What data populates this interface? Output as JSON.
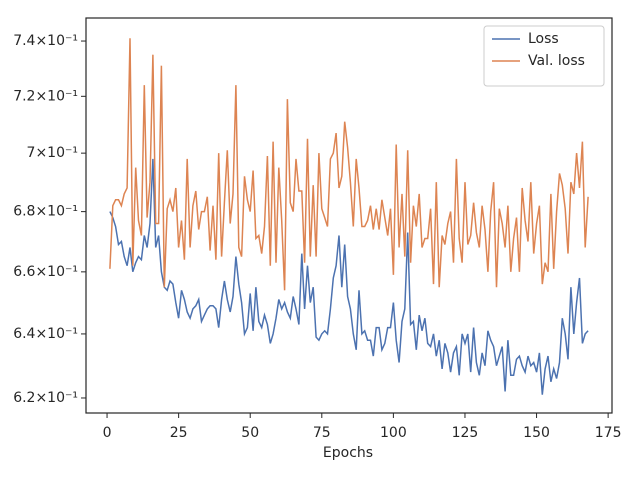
{
  "chart_data": {
    "type": "line",
    "xlabel": "Epochs",
    "yscale": "log",
    "legend": "upper right",
    "x": [
      1,
      2,
      3,
      4,
      5,
      6,
      7,
      8,
      9,
      10,
      11,
      12,
      13,
      14,
      15,
      16,
      17,
      18,
      19,
      20,
      21,
      22,
      23,
      24,
      25,
      26,
      27,
      28,
      29,
      30,
      31,
      32,
      33,
      34,
      35,
      36,
      37,
      38,
      39,
      40,
      41,
      42,
      43,
      44,
      45,
      46,
      47,
      48,
      49,
      50,
      51,
      52,
      53,
      54,
      55,
      56,
      57,
      58,
      59,
      60,
      61,
      62,
      63,
      64,
      65,
      66,
      67,
      68,
      69,
      70,
      71,
      72,
      73,
      74,
      75,
      76,
      77,
      78,
      79,
      80,
      81,
      82,
      83,
      84,
      85,
      86,
      87,
      88,
      89,
      90,
      91,
      92,
      93,
      94,
      95,
      96,
      97,
      98,
      99,
      100,
      101,
      102,
      103,
      104,
      105,
      106,
      107,
      108,
      109,
      110,
      111,
      112,
      113,
      114,
      115,
      116,
      117,
      118,
      119,
      120,
      121,
      122,
      123,
      124,
      125,
      126,
      127,
      128,
      129,
      130,
      131,
      132,
      133,
      134,
      135,
      136,
      137,
      138,
      139,
      140,
      141,
      142,
      143,
      144,
      145,
      146,
      147,
      148,
      149,
      150,
      151,
      152,
      153,
      154,
      155,
      156,
      157,
      158,
      159,
      160,
      161,
      162,
      163,
      164,
      165,
      166,
      167,
      168
    ],
    "series": [
      {
        "name": "Loss",
        "color": "#4c72b0",
        "values": [
          0.68,
          0.678,
          0.675,
          0.669,
          0.67,
          0.665,
          0.662,
          0.668,
          0.66,
          0.663,
          0.665,
          0.664,
          0.672,
          0.668,
          0.676,
          0.698,
          0.668,
          0.672,
          0.66,
          0.655,
          0.654,
          0.657,
          0.656,
          0.65,
          0.645,
          0.654,
          0.651,
          0.647,
          0.645,
          0.648,
          0.649,
          0.651,
          0.644,
          0.646,
          0.648,
          0.649,
          0.649,
          0.648,
          0.642,
          0.651,
          0.657,
          0.651,
          0.647,
          0.652,
          0.665,
          0.656,
          0.65,
          0.64,
          0.642,
          0.653,
          0.641,
          0.655,
          0.644,
          0.642,
          0.646,
          0.643,
          0.637,
          0.64,
          0.645,
          0.651,
          0.648,
          0.65,
          0.647,
          0.645,
          0.652,
          0.648,
          0.643,
          0.666,
          0.648,
          0.662,
          0.65,
          0.655,
          0.639,
          0.638,
          0.64,
          0.641,
          0.64,
          0.648,
          0.658,
          0.662,
          0.672,
          0.655,
          0.669,
          0.652,
          0.648,
          0.64,
          0.635,
          0.654,
          0.64,
          0.641,
          0.638,
          0.638,
          0.633,
          0.642,
          0.642,
          0.635,
          0.637,
          0.642,
          0.642,
          0.65,
          0.638,
          0.631,
          0.644,
          0.648,
          0.673,
          0.643,
          0.644,
          0.635,
          0.646,
          0.641,
          0.645,
          0.637,
          0.636,
          0.64,
          0.633,
          0.638,
          0.629,
          0.637,
          0.634,
          0.628,
          0.634,
          0.636,
          0.627,
          0.64,
          0.637,
          0.64,
          0.628,
          0.642,
          0.631,
          0.627,
          0.634,
          0.63,
          0.641,
          0.638,
          0.636,
          0.63,
          0.633,
          0.636,
          0.622,
          0.638,
          0.627,
          0.627,
          0.632,
          0.633,
          0.63,
          0.628,
          0.633,
          0.63,
          0.631,
          0.628,
          0.634,
          0.621,
          0.629,
          0.633,
          0.625,
          0.629,
          0.626,
          0.631,
          0.645,
          0.64,
          0.632,
          0.655,
          0.64,
          0.65,
          0.658,
          0.637,
          0.64,
          0.641
        ]
      },
      {
        "name": "Val. loss",
        "color": "#dd8452",
        "values": [
          0.661,
          0.682,
          0.684,
          0.684,
          0.682,
          0.686,
          0.688,
          0.741,
          0.662,
          0.695,
          0.677,
          0.672,
          0.724,
          0.678,
          0.69,
          0.735,
          0.676,
          0.676,
          0.731,
          0.655,
          0.681,
          0.684,
          0.68,
          0.688,
          0.668,
          0.677,
          0.664,
          0.698,
          0.668,
          0.682,
          0.687,
          0.674,
          0.68,
          0.68,
          0.685,
          0.667,
          0.682,
          0.664,
          0.7,
          0.665,
          0.683,
          0.701,
          0.676,
          0.686,
          0.724,
          0.668,
          0.665,
          0.692,
          0.684,
          0.68,
          0.694,
          0.671,
          0.672,
          0.666,
          0.675,
          0.699,
          0.662,
          0.704,
          0.663,
          0.695,
          0.677,
          0.654,
          0.719,
          0.683,
          0.68,
          0.698,
          0.687,
          0.687,
          0.663,
          0.705,
          0.665,
          0.689,
          0.665,
          0.7,
          0.681,
          0.678,
          0.675,
          0.698,
          0.7,
          0.707,
          0.688,
          0.692,
          0.711,
          0.702,
          0.69,
          0.675,
          0.698,
          0.688,
          0.675,
          0.675,
          0.677,
          0.682,
          0.674,
          0.681,
          0.674,
          0.684,
          0.678,
          0.672,
          0.681,
          0.659,
          0.703,
          0.668,
          0.686,
          0.665,
          0.701,
          0.663,
          0.682,
          0.675,
          0.686,
          0.668,
          0.671,
          0.671,
          0.681,
          0.656,
          0.69,
          0.655,
          0.672,
          0.669,
          0.676,
          0.68,
          0.663,
          0.698,
          0.671,
          0.663,
          0.69,
          0.669,
          0.672,
          0.683,
          0.673,
          0.668,
          0.682,
          0.674,
          0.66,
          0.68,
          0.69,
          0.655,
          0.681,
          0.676,
          0.668,
          0.682,
          0.66,
          0.671,
          0.678,
          0.66,
          0.688,
          0.677,
          0.67,
          0.69,
          0.666,
          0.676,
          0.682,
          0.656,
          0.663,
          0.66,
          0.686,
          0.661,
          0.68,
          0.693,
          0.689,
          0.681,
          0.666,
          0.69,
          0.686,
          0.7,
          0.688,
          0.704,
          0.668,
          0.685
        ]
      }
    ],
    "xlim": [
      -7.35,
      176.35
    ],
    "xticks": [
      0,
      25,
      50,
      75,
      100,
      125,
      150,
      175
    ],
    "ylim": [
      0.6154,
      0.7485
    ],
    "yticks": [
      {
        "value": 0.62,
        "label": "6.2×10⁻¹"
      },
      {
        "value": 0.64,
        "label": "6.4×10⁻¹"
      },
      {
        "value": 0.66,
        "label": "6.6×10⁻¹"
      },
      {
        "value": 0.68,
        "label": "6.8×10⁻¹"
      },
      {
        "value": 0.7,
        "label": "7×10⁻¹"
      },
      {
        "value": 0.72,
        "label": "7.2×10⁻¹"
      },
      {
        "value": 0.74,
        "label": "7.4×10⁻¹"
      }
    ]
  }
}
